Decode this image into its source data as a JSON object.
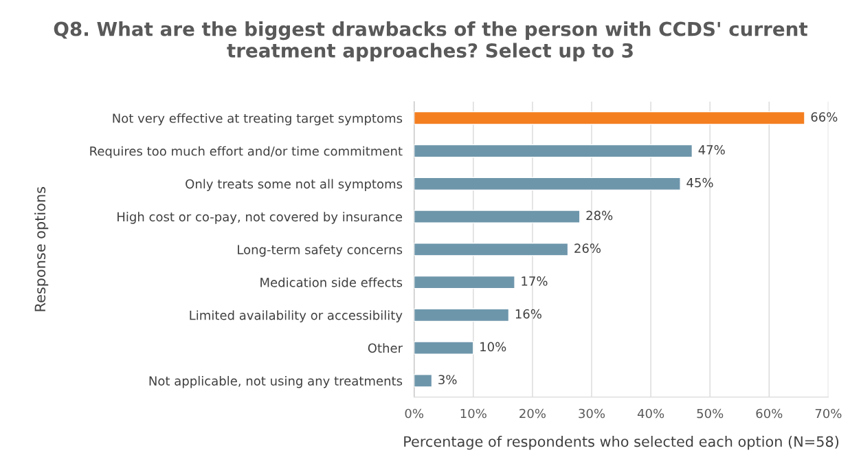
{
  "chart_data": {
    "type": "bar",
    "orientation": "horizontal",
    "title": "Q8. What are the biggest drawbacks of the person with CCDS' current treatment approaches? Select up to 3",
    "xlabel": "Percentage of respondents who selected each option (N=58)",
    "ylabel": "Response options",
    "categories": [
      "Not very effective at treating target symptoms",
      "Requires too much effort and/or time commitment",
      "Only treats some not all symptoms",
      "High cost or co-pay, not covered by insurance",
      "Long-term safety concerns",
      "Medication side effects",
      "Limited availability or accessibility",
      "Other",
      "Not applicable, not using any treatments"
    ],
    "values": [
      66,
      47,
      45,
      28,
      26,
      17,
      16,
      10,
      3
    ],
    "value_labels": [
      "66%",
      "47%",
      "45%",
      "28%",
      "26%",
      "17%",
      "16%",
      "10%",
      "3%"
    ],
    "colors": [
      "#f47f20",
      "#6e96ab",
      "#6e96ab",
      "#6e96ab",
      "#6e96ab",
      "#6e96ab",
      "#6e96ab",
      "#6e96ab",
      "#6e96ab"
    ],
    "xlim": [
      0,
      70
    ],
    "xticks": [
      {
        "value": 0,
        "label": "0%"
      },
      {
        "value": 10,
        "label": "10%"
      },
      {
        "value": 20,
        "label": "20%"
      },
      {
        "value": 30,
        "label": "30%"
      },
      {
        "value": 40,
        "label": "40%"
      },
      {
        "value": 50,
        "label": "50%"
      },
      {
        "value": 60,
        "label": "60%"
      },
      {
        "value": 70,
        "label": "70%"
      }
    ],
    "grid": "x",
    "legend": false
  }
}
